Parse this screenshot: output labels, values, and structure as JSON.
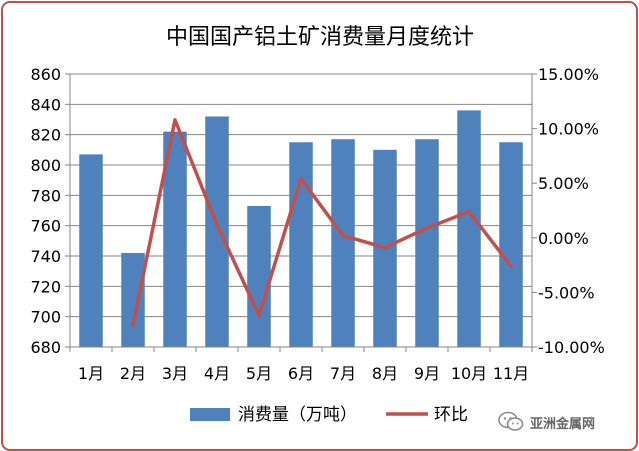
{
  "chart_data": {
    "type": "bar+line",
    "title": "中国国产铝土矿消费量月度统计",
    "categories": [
      "1月",
      "2月",
      "3月",
      "4月",
      "5月",
      "6月",
      "7月",
      "8月",
      "9月",
      "10月",
      "11月"
    ],
    "series": [
      {
        "name": "消费量（万吨）",
        "type": "bar",
        "axis": "left",
        "color": "#4f81bd",
        "values": [
          807,
          742,
          822,
          832,
          773,
          815,
          817,
          810,
          817,
          836,
          815
        ]
      },
      {
        "name": "环比",
        "type": "line",
        "axis": "right",
        "color": "#c0504d",
        "values": [
          null,
          -8.0,
          10.8,
          1.2,
          -7.1,
          5.4,
          0.2,
          -0.9,
          0.9,
          2.4,
          -2.6
        ]
      }
    ],
    "y_left": {
      "ylim": [
        680,
        860
      ],
      "ticks": [
        "680",
        "700",
        "720",
        "740",
        "760",
        "780",
        "800",
        "820",
        "840",
        "860"
      ]
    },
    "y_right": {
      "ylim": [
        -10,
        15
      ],
      "ticks": [
        "-10.00%",
        "-5.00%",
        "0.00%",
        "5.00%",
        "10.00%",
        "15.00%"
      ]
    },
    "grid": true,
    "legend": "bottom"
  },
  "watermark": {
    "text": "亚洲金属网",
    "icon": "wechat-icon"
  }
}
